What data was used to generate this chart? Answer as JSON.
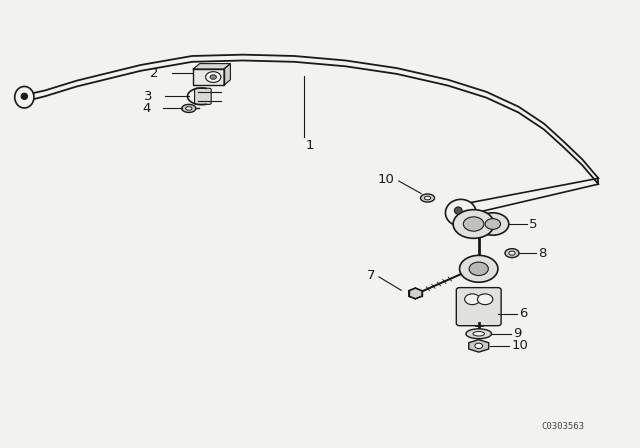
{
  "bg_color": "#f2f2ee",
  "line_color": "#1a1a1a",
  "text_color": "#1a1a1a",
  "watermark": "C0303563",
  "bar_upper": {
    "x": [
      0.04,
      0.08,
      0.15,
      0.25,
      0.38,
      0.5,
      0.6,
      0.68,
      0.73,
      0.78,
      0.82,
      0.86,
      0.89,
      0.92,
      0.95
    ],
    "y": [
      0.785,
      0.795,
      0.82,
      0.855,
      0.878,
      0.878,
      0.868,
      0.848,
      0.825,
      0.795,
      0.76,
      0.72,
      0.678,
      0.638,
      0.595
    ]
  },
  "bar_lower": {
    "x": [
      0.04,
      0.08,
      0.15,
      0.25,
      0.38,
      0.5,
      0.6,
      0.68,
      0.73,
      0.78,
      0.82,
      0.86,
      0.89,
      0.92,
      0.95
    ],
    "y": [
      0.772,
      0.782,
      0.808,
      0.843,
      0.866,
      0.866,
      0.856,
      0.836,
      0.813,
      0.783,
      0.748,
      0.708,
      0.666,
      0.626,
      0.583
    ]
  }
}
